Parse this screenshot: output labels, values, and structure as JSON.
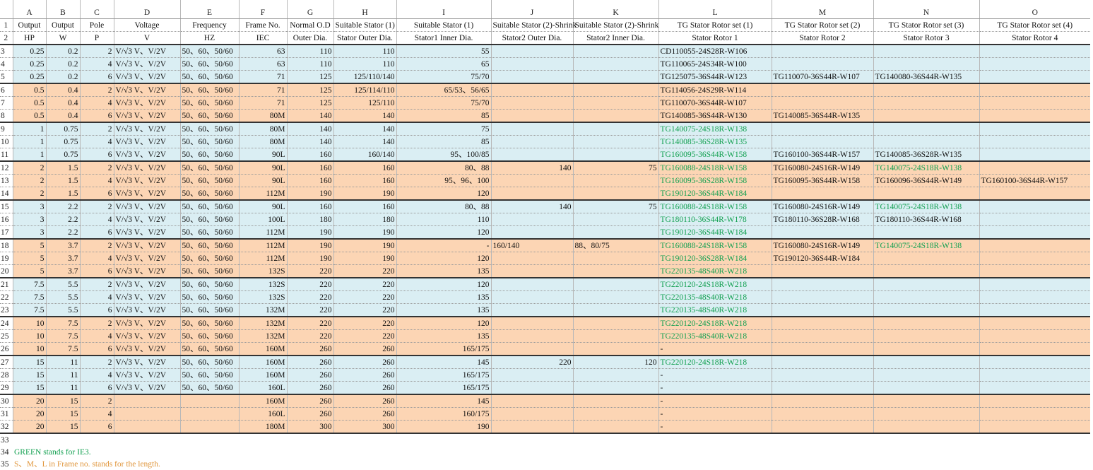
{
  "sheet": {
    "column_letters": [
      "A",
      "B",
      "C",
      "D",
      "E",
      "F",
      "G",
      "H",
      "I",
      "J",
      "K",
      "L",
      "M",
      "N",
      "O"
    ],
    "header": {
      "row1": {
        "n": "1",
        "cells": [
          "Output",
          "Output",
          "Pole",
          "Voltage",
          "Frequency",
          "Frame No.",
          "Normal O.D",
          "Suitable Stator (1)",
          "Suitable Stator (1)",
          "Suitable Stator (2)-Shrink",
          "Suitable Stator (2)-Shrink",
          "TG Stator Rotor set (1)",
          "TG Stator Rotor set (2)",
          "TG Stator Rotor set (3)",
          "TG Stator Rotor set (4)"
        ]
      },
      "row2": {
        "n": "2",
        "cells": [
          "HP",
          "W",
          "P",
          "V",
          "HZ",
          "IEC",
          "Outer Dia.",
          "Stator Outer Dia.",
          "Stator1 Inner Dia.",
          "Stator2 Outer Dia.",
          "Stator2 Inner Dia.",
          "Stator Rotor 1",
          "Stator Rotor 2",
          "Stator Rotor 3",
          "Stator Rotor 4"
        ]
      }
    },
    "groups": [
      {
        "fill": "#daeef3",
        "rows": [
          {
            "n": "3",
            "cells": [
              "0.25",
              "0.2",
              "2",
              "V/√3 V、V/2V",
              "50、60、50/60",
              "63",
              "110",
              "110",
              "55",
              null,
              null,
              "CD110055-24S28R-W106",
              null,
              null,
              null
            ],
            "green": []
          },
          {
            "n": "4",
            "cells": [
              "0.25",
              "0.2",
              "4",
              "V/√3 V、V/2V",
              "50、60、50/60",
              "63",
              "110",
              "110",
              "65",
              null,
              null,
              "TG110065-24S34R-W100",
              null,
              null,
              null
            ],
            "green": []
          },
          {
            "n": "5",
            "cells": [
              "0.25",
              "0.2",
              "6",
              "V/√3 V、V/2V",
              "50、60、50/60",
              "71",
              "125",
              "125/110/140",
              "75/70",
              null,
              null,
              "TG125075-36S44R-W123",
              "TG110070-36S44R-W107",
              "TG140080-36S44R-W135",
              null
            ],
            "green": []
          }
        ]
      },
      {
        "fill": "#fcd5b4",
        "rows": [
          {
            "n": "6",
            "cells": [
              "0.5",
              "0.4",
              "2",
              "V/√3 V、V/2V",
              "50、60、50/60",
              "71",
              "125",
              "125/114/110",
              "65/53、56/65",
              null,
              null,
              "TG114056-24S29R-W114",
              null,
              null,
              null
            ],
            "green": []
          },
          {
            "n": "7",
            "cells": [
              "0.5",
              "0.4",
              "4",
              "V/√3 V、V/2V",
              "50、60、50/60",
              "71",
              "125",
              "125/110",
              "75/70",
              null,
              null,
              "TG110070-36S44R-W107",
              null,
              null,
              null
            ],
            "green": []
          },
          {
            "n": "8",
            "cells": [
              "0.5",
              "0.4",
              "6",
              "V/√3 V、V/2V",
              "50、60、50/60",
              "80M",
              "140",
              "140",
              "85",
              null,
              null,
              "TG140085-36S44R-W130",
              "TG140085-36S44R-W135",
              null,
              null
            ],
            "green": []
          }
        ]
      },
      {
        "fill": "#daeef3",
        "rows": [
          {
            "n": "9",
            "cells": [
              "1",
              "0.75",
              "2",
              "V/√3 V、V/2V",
              "50、60、50/60",
              "80M",
              "140",
              "140",
              "75",
              null,
              null,
              "TG140075-24S18R-W138",
              null,
              null,
              null
            ],
            "green": [
              11
            ]
          },
          {
            "n": "10",
            "cells": [
              "1",
              "0.75",
              "4",
              "V/√3 V、V/2V",
              "50、60、50/60",
              "80M",
              "140",
              "140",
              "85",
              null,
              null,
              "TG140085-36S28R-W135",
              null,
              null,
              null
            ],
            "green": [
              11
            ]
          },
          {
            "n": "11",
            "cells": [
              "1",
              "0.75",
              "6",
              "V/√3 V、V/2V",
              "50、60、50/60",
              "90L",
              "160",
              "160/140",
              "95、100/85",
              null,
              null,
              "TG160095-36S44R-W158",
              "TG160100-36S44R-W157",
              "TG140085-36S28R-W135",
              null
            ],
            "green": [
              11
            ]
          }
        ]
      },
      {
        "fill": "#fcd5b4",
        "rows": [
          {
            "n": "12",
            "cells": [
              "2",
              "1.5",
              "2",
              "V/√3 V、V/2V",
              "50、60、50/60",
              "90L",
              "160",
              "160",
              "80、88",
              "140",
              "75",
              "TG160088-24S18R-W158",
              "TG160080-24S16R-W149",
              "TG140075-24S18R-W138",
              null
            ],
            "green": [
              11,
              13
            ]
          },
          {
            "n": "13",
            "cells": [
              "2",
              "1.5",
              "4",
              "V/√3 V、V/2V",
              "50、60、50/60",
              "90L",
              "160",
              "160",
              "95、96、100",
              null,
              null,
              "TG160095-36S28R-W158",
              "TG160095-36S44R-W158",
              "TG160096-36S44R-W149",
              "TG160100-36S44R-W157"
            ],
            "green": [
              11
            ]
          },
          {
            "n": "14",
            "cells": [
              "2",
              "1.5",
              "6",
              "V/√3 V、V/2V",
              "50、60、50/60",
              "112M",
              "190",
              "190",
              "120",
              null,
              null,
              "TG190120-36S44R-W184",
              null,
              null,
              null
            ],
            "green": [
              11
            ]
          }
        ]
      },
      {
        "fill": "#daeef3",
        "rows": [
          {
            "n": "15",
            "cells": [
              "3",
              "2.2",
              "2",
              "V/√3 V、V/2V",
              "50、60、50/60",
              "90L",
              "160",
              "160",
              "80、88",
              "140",
              "75",
              "TG160088-24S18R-W158",
              "TG160080-24S16R-W149",
              "TG140075-24S18R-W138",
              null
            ],
            "green": [
              11,
              13
            ]
          },
          {
            "n": "16",
            "cells": [
              "3",
              "2.2",
              "4",
              "V/√3 V、V/2V",
              "50、60、50/60",
              "100L",
              "180",
              "180",
              "110",
              null,
              null,
              "TG180110-36S44R-W178",
              "TG180110-36S28R-W168",
              "TG180110-36S44R-W168",
              null
            ],
            "green": [
              11
            ]
          },
          {
            "n": "17",
            "cells": [
              "3",
              "2.2",
              "6",
              "V/√3 V、V/2V",
              "50、60、50/60",
              "112M",
              "190",
              "190",
              "120",
              null,
              null,
              "TG190120-36S44R-W184",
              null,
              null,
              null
            ],
            "green": [
              11
            ]
          }
        ]
      },
      {
        "fill": "#fcd5b4",
        "rows": [
          {
            "n": "18",
            "cells": [
              "5",
              "3.7",
              "2",
              "V/√3 V、V/2V",
              "50、60、50/60",
              "112M",
              "190",
              "190",
              "-",
              "160/140",
              "88、80/75",
              "TG160088-24S18R-W158",
              "TG160080-24S16R-W149",
              "TG140075-24S18R-W138",
              null
            ],
            "green": [
              11,
              13
            ]
          },
          {
            "n": "19",
            "cells": [
              "5",
              "3.7",
              "4",
              "V/√3 V、V/2V",
              "50、60、50/60",
              "112M",
              "190",
              "190",
              "120",
              null,
              null,
              "TG190120-36S28R-W184",
              "TG190120-36S44R-W184",
              null,
              null
            ],
            "green": [
              11
            ]
          },
          {
            "n": "20",
            "cells": [
              "5",
              "3.7",
              "6",
              "V/√3 V、V/2V",
              "50、60、50/60",
              "132S",
              "220",
              "220",
              "135",
              null,
              null,
              "TG220135-48S40R-W218",
              null,
              null,
              null
            ],
            "green": [
              11
            ]
          }
        ]
      },
      {
        "fill": "#daeef3",
        "rows": [
          {
            "n": "21",
            "cells": [
              "7.5",
              "5.5",
              "2",
              "V/√3 V、V/2V",
              "50、60、50/60",
              "132S",
              "220",
              "220",
              "120",
              null,
              null,
              "TG220120-24S18R-W218",
              null,
              null,
              null
            ],
            "green": [
              11
            ]
          },
          {
            "n": "22",
            "cells": [
              "7.5",
              "5.5",
              "4",
              "V/√3 V、V/2V",
              "50、60、50/60",
              "132S",
              "220",
              "220",
              "135",
              null,
              null,
              "TG220135-48S40R-W218",
              null,
              null,
              null
            ],
            "green": [
              11
            ]
          },
          {
            "n": "23",
            "cells": [
              "7.5",
              "5.5",
              "6",
              "V/√3 V、V/2V",
              "50、60、50/60",
              "132M",
              "220",
              "220",
              "135",
              null,
              null,
              "TG220135-48S40R-W218",
              null,
              null,
              null
            ],
            "green": [
              11
            ]
          }
        ]
      },
      {
        "fill": "#fcd5b4",
        "rows": [
          {
            "n": "24",
            "cells": [
              "10",
              "7.5",
              "2",
              "V/√3 V、V/2V",
              "50、60、50/60",
              "132M",
              "220",
              "220",
              "120",
              null,
              null,
              "TG220120-24S18R-W218",
              null,
              null,
              null
            ],
            "green": [
              11
            ]
          },
          {
            "n": "25",
            "cells": [
              "10",
              "7.5",
              "4",
              "V/√3 V、V/2V",
              "50、60、50/60",
              "132M",
              "220",
              "220",
              "135",
              null,
              null,
              "TG220135-48S40R-W218",
              null,
              null,
              null
            ],
            "green": [
              11
            ]
          },
          {
            "n": "26",
            "cells": [
              "10",
              "7.5",
              "6",
              "V/√3 V、V/2V",
              "50、60、50/60",
              "160M",
              "260",
              "260",
              "165/175",
              null,
              null,
              "-",
              null,
              null,
              null
            ],
            "green": []
          }
        ]
      },
      {
        "fill": "#daeef3",
        "rows": [
          {
            "n": "27",
            "cells": [
              "15",
              "11",
              "2",
              "V/√3 V、V/2V",
              "50、60、50/60",
              "160M",
              "260",
              "260",
              "145",
              "220",
              "120",
              "TG220120-24S18R-W218",
              null,
              null,
              null
            ],
            "green": [
              11
            ]
          },
          {
            "n": "28",
            "cells": [
              "15",
              "11",
              "4",
              "V/√3 V、V/2V",
              "50、60、50/60",
              "160M",
              "260",
              "260",
              "165/175",
              null,
              null,
              "-",
              null,
              null,
              null
            ],
            "green": []
          },
          {
            "n": "29",
            "cells": [
              "15",
              "11",
              "6",
              "V/√3 V、V/2V",
              "50、60、50/60",
              "160L",
              "260",
              "260",
              "165/175",
              null,
              null,
              "-",
              null,
              null,
              null
            ],
            "green": []
          }
        ]
      },
      {
        "fill": "#fcd5b4",
        "rows": [
          {
            "n": "30",
            "cells": [
              "20",
              "15",
              "2",
              null,
              null,
              "160M",
              "260",
              "260",
              "145",
              null,
              null,
              "-",
              null,
              null,
              null
            ],
            "green": []
          },
          {
            "n": "31",
            "cells": [
              "20",
              "15",
              "4",
              null,
              null,
              "160L",
              "260",
              "260",
              "160/175",
              null,
              null,
              "-",
              null,
              null,
              null
            ],
            "green": []
          },
          {
            "n": "32",
            "cells": [
              "20",
              "15",
              "6",
              null,
              null,
              "180M",
              "300",
              "300",
              "190",
              null,
              null,
              "-",
              null,
              null,
              null
            ],
            "green": []
          }
        ]
      }
    ],
    "notes": [
      {
        "n": "33",
        "text": null,
        "color": "#000000"
      },
      {
        "n": "34",
        "text": "GREEN stands for IE3.",
        "color": "#12a050"
      },
      {
        "n": "35",
        "text": "S、M、L in Frame no. stands for the length.",
        "color": "#e0963c"
      }
    ]
  }
}
